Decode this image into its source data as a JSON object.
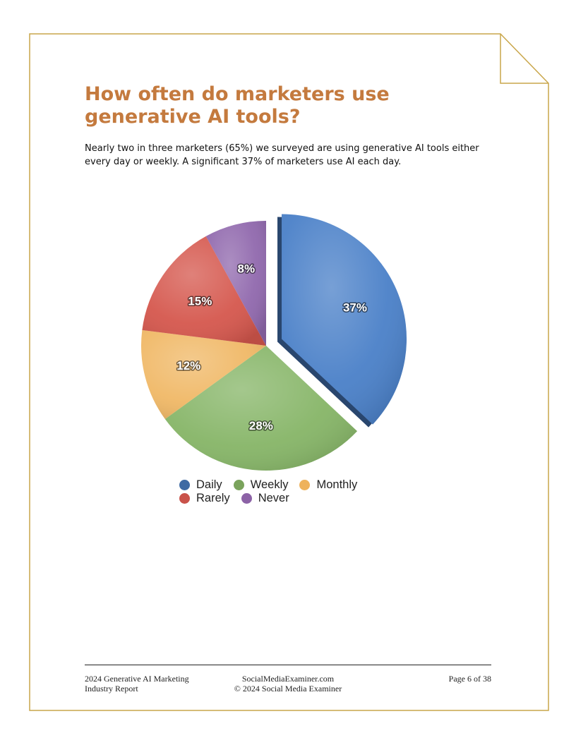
{
  "header": {
    "title": "How often do marketers use generative AI tools?",
    "intro": "Nearly two in three marketers (65%) we surveyed are using generative AI tools either every day or weekly. A significant 37% of marketers use AI each day."
  },
  "chart_data": {
    "type": "pie",
    "categories": [
      "Daily",
      "Weekly",
      "Monthly",
      "Rarely",
      "Never"
    ],
    "values": [
      37,
      28,
      12,
      15,
      8
    ],
    "data_labels": [
      "37%",
      "28%",
      "12%",
      "15%",
      "8%"
    ],
    "colors": [
      "#4a80c8",
      "#86b567",
      "#f0b866",
      "#d5574d",
      "#9068ad"
    ],
    "exploded_slice": "Daily",
    "legend_placement": "bottom",
    "title": "",
    "xlabel": "",
    "ylabel": ""
  },
  "legend": {
    "rows": [
      [
        {
          "label": "Daily",
          "color": "#3e6aa3"
        },
        {
          "label": "Weekly",
          "color": "#7aa35c"
        },
        {
          "label": "Monthly",
          "color": "#eeb25c"
        }
      ],
      [
        {
          "label": "Rarely",
          "color": "#c9524a"
        },
        {
          "label": "Never",
          "color": "#8c62a6"
        }
      ]
    ]
  },
  "footer": {
    "left_line1": "2024 Generative AI Marketing",
    "left_line2": "Industry Report",
    "center_line1": "SocialMediaExaminer.com",
    "center_line2": "© 2024 Social Media Examiner",
    "right": "Page 6 of 38"
  },
  "colors": {
    "title": "#c47a3e",
    "frame_border": "#c9a64a"
  }
}
